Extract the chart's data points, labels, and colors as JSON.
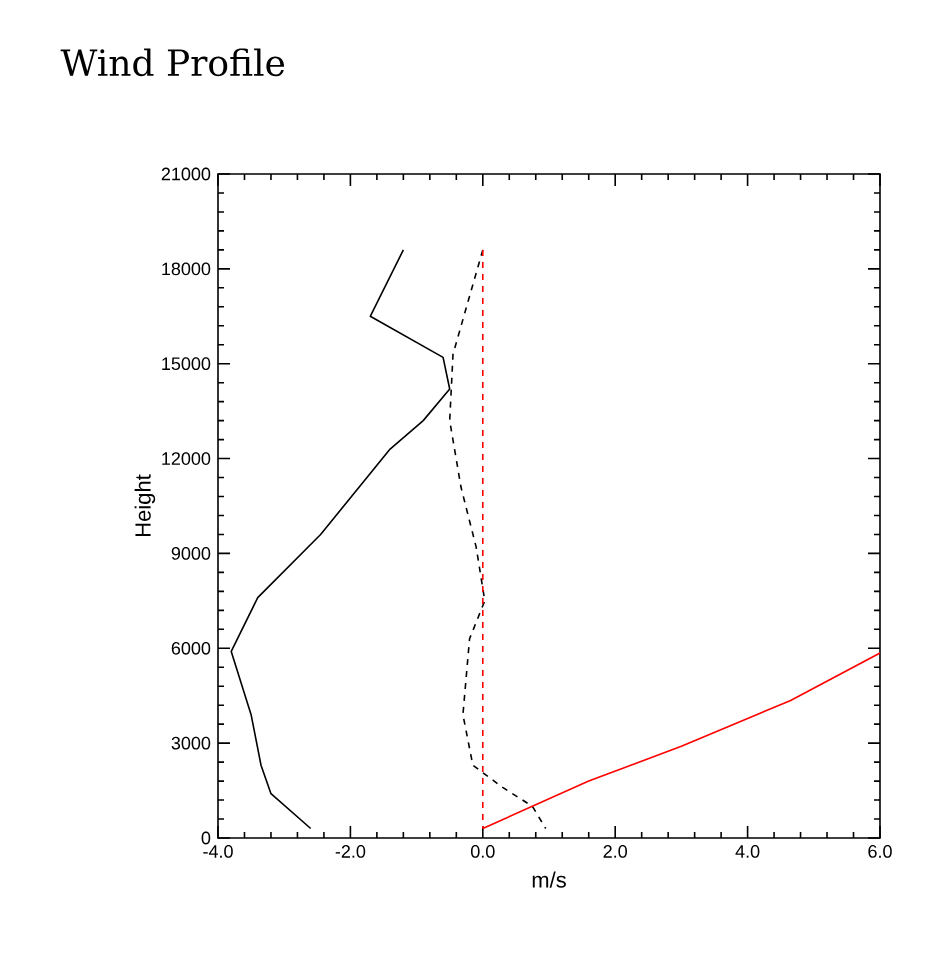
{
  "chart_data": {
    "type": "line",
    "title": "Wind Profile",
    "xlabel": "m/s",
    "ylabel": "Height",
    "xlim": [
      -4,
      6
    ],
    "ylim": [
      0,
      21000
    ],
    "xticks": [
      {
        "value": -4,
        "label": "-4.0"
      },
      {
        "value": -2,
        "label": "-2.0"
      },
      {
        "value": 0,
        "label": "0.0"
      },
      {
        "value": 2,
        "label": "2.0"
      },
      {
        "value": 4,
        "label": "4.0"
      },
      {
        "value": 6,
        "label": "6.0"
      }
    ],
    "yticks": [
      0,
      3000,
      6000,
      9000,
      12000,
      15000,
      18000,
      21000
    ],
    "marker": "none",
    "series": [
      {
        "color": "#000000",
        "line_style": "solid",
        "x": [
          -1.2,
          -1.7,
          -0.6,
          -0.5,
          -0.9,
          -1.4,
          -2.45,
          -3.4,
          -3.8,
          -3.5,
          -3.35,
          -3.2,
          -2.6
        ],
        "values": [
          18600,
          16500,
          15200,
          14200,
          13200,
          12300,
          9600,
          7600,
          5900,
          3900,
          2300,
          1400,
          300
        ]
      },
      {
        "color": "#000000",
        "line_style": "dashed",
        "x": [
          0.0,
          -0.45,
          -0.5,
          -0.33,
          -0.1,
          0.03,
          -0.2,
          -0.3,
          -0.15,
          0.3,
          0.75,
          0.95
        ],
        "values": [
          18600,
          15300,
          13200,
          11100,
          9200,
          7500,
          6300,
          3900,
          2300,
          1600,
          1000,
          300
        ]
      },
      {
        "color": "#ff0000",
        "line_style": "dashed",
        "x": [
          0,
          0
        ],
        "values": [
          18600,
          300
        ]
      },
      {
        "color": "#ff0000",
        "line_style": "solid",
        "x": [
          0,
          1.6,
          3.0,
          4.65,
          6.0
        ],
        "values": [
          300,
          1800,
          2900,
          4350,
          5850
        ]
      }
    ]
  }
}
